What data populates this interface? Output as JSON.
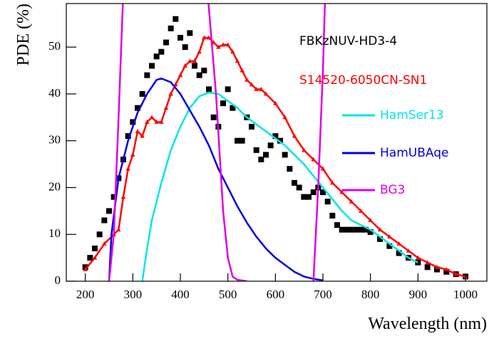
{
  "chart_data": {
    "type": "line",
    "xlabel": "Wavelength (nm)",
    "ylabel": "PDE (%)",
    "xlim": [
      160,
      1045
    ],
    "ylim": [
      0,
      59.3
    ],
    "xticks": [
      200,
      300,
      400,
      500,
      600,
      700,
      800,
      900,
      1000
    ],
    "yticks": [
      0,
      10,
      20,
      30,
      40,
      50
    ],
    "grid": false,
    "legend": "right",
    "series": [
      {
        "name": "FBKzNUV-HD3-4",
        "color": "#000000",
        "marker": "square",
        "line": false,
        "x": [
          200,
          210,
          220,
          230,
          240,
          250,
          260,
          270,
          280,
          290,
          300,
          310,
          320,
          330,
          340,
          350,
          360,
          370,
          380,
          390,
          400,
          410,
          420,
          430,
          440,
          450,
          460,
          470,
          480,
          490,
          500,
          510,
          520,
          530,
          540,
          550,
          560,
          570,
          580,
          590,
          600,
          610,
          620,
          630,
          640,
          650,
          660,
          670,
          680,
          690,
          700,
          710,
          720,
          730,
          740,
          750,
          760,
          770,
          780,
          790,
          800,
          820,
          840,
          860,
          880,
          900,
          920,
          940,
          960,
          980,
          1000
        ],
        "values": [
          3,
          5,
          7,
          10,
          13,
          15,
          18,
          22,
          26,
          31,
          34,
          37,
          40,
          44,
          46,
          48,
          49,
          51,
          54,
          56,
          52,
          50,
          53,
          46,
          44,
          45,
          41,
          35,
          33,
          38,
          41,
          37,
          30,
          30,
          35,
          33,
          28,
          26,
          27,
          29,
          31,
          30,
          27,
          24,
          21,
          20,
          18,
          18,
          19,
          20,
          19,
          17,
          14,
          12,
          11,
          11,
          11,
          11,
          11,
          11,
          10.5,
          9,
          7.5,
          6,
          5,
          4,
          3,
          2.5,
          2,
          1.5,
          1
        ]
      },
      {
        "name": "S14520-6050CN-SN1",
        "color": "#ff0000",
        "marker": "triangle",
        "line": true,
        "x": [
          200,
          220,
          240,
          260,
          270,
          280,
          290,
          300,
          310,
          320,
          330,
          340,
          350,
          360,
          370,
          380,
          390,
          400,
          410,
          420,
          430,
          440,
          450,
          460,
          470,
          480,
          490,
          500,
          510,
          520,
          530,
          540,
          550,
          560,
          570,
          580,
          600,
          620,
          640,
          660,
          680,
          700,
          720,
          740,
          760,
          780,
          800,
          820,
          840,
          860,
          880,
          900,
          920,
          940,
          960,
          980,
          1000
        ],
        "values": [
          2.5,
          5,
          8,
          10,
          11,
          18,
          24,
          27,
          32,
          31,
          34,
          35,
          34,
          34,
          37,
          40,
          42,
          44,
          46,
          47,
          47,
          49,
          52,
          52,
          51,
          50,
          50.5,
          50.5,
          49,
          47,
          45,
          43,
          42,
          41,
          41,
          40,
          38,
          35,
          31,
          28,
          26,
          24,
          21,
          19,
          17,
          15,
          13,
          11,
          9.5,
          8,
          6.5,
          5,
          4,
          3,
          2.5,
          1.5,
          1
        ]
      },
      {
        "name": "HamSer13",
        "color": "#00e5e5",
        "marker": "none",
        "line": true,
        "x": [
          320,
          330,
          340,
          360,
          380,
          400,
          420,
          440,
          460,
          480,
          500,
          520,
          540,
          560,
          580,
          600,
          620,
          640,
          660,
          680,
          700,
          720,
          740,
          760,
          780,
          800,
          820,
          840,
          860,
          880,
          900
        ],
        "values": [
          0,
          7,
          13,
          21,
          28,
          33,
          37,
          39.5,
          40.3,
          40,
          38.5,
          37,
          35,
          33.5,
          32,
          30.5,
          29,
          27,
          25,
          22.5,
          20,
          17.5,
          15,
          13,
          12,
          11,
          9.5,
          8,
          6.5,
          5,
          4
        ]
      },
      {
        "name": "HamUBAqe",
        "color": "#0000e0",
        "marker": "none",
        "line": true,
        "x": [
          250,
          255,
          270,
          290,
          310,
          330,
          350,
          360,
          380,
          400,
          420,
          440,
          460,
          480,
          500,
          520,
          540,
          560,
          580,
          600,
          620,
          640,
          660,
          680,
          700
        ],
        "values": [
          0,
          10,
          22,
          30,
          36,
          40,
          43,
          43.3,
          42.5,
          40,
          36.5,
          33,
          29,
          24,
          20,
          16,
          12.5,
          9.5,
          7,
          5,
          3.5,
          2,
          1,
          0.5,
          0.2
        ]
      },
      {
        "name": "BG3",
        "color": "#e000e0",
        "marker": "none",
        "line": true,
        "x": [
          250,
          260,
          270,
          280,
          457,
          475,
          490,
          500,
          510,
          520,
          540,
          560,
          680,
          690,
          700,
          705
        ],
        "values": [
          0,
          10,
          35,
          62,
          62,
          40,
          15,
          5,
          1,
          0.3,
          0,
          null,
          0,
          20,
          45,
          62
        ]
      }
    ]
  }
}
